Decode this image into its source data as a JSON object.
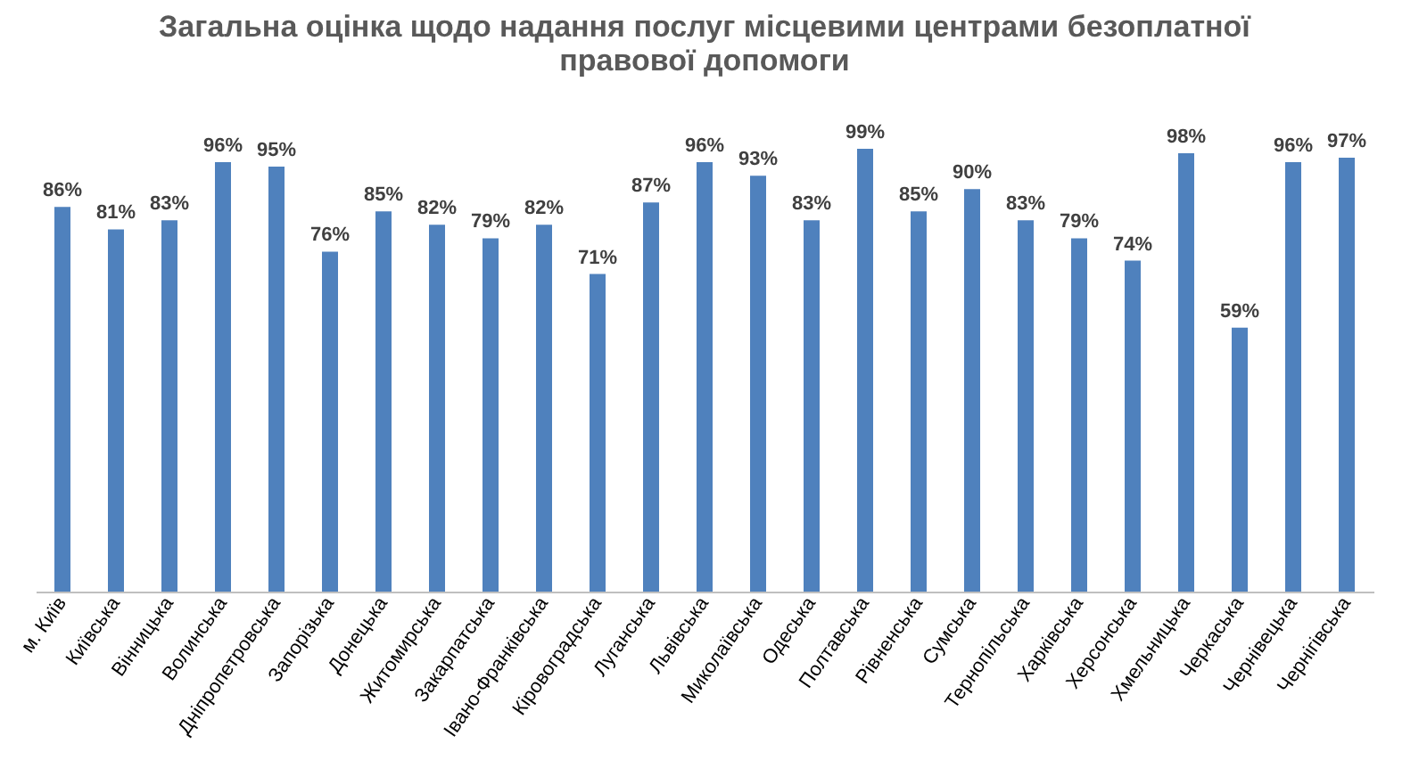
{
  "chart_data": {
    "type": "bar",
    "title": [
      "Загальна оцінка щодо надання послуг місцевими центрами безоплатної",
      "правової допомоги"
    ],
    "categories": [
      "м. Київ",
      "Київська",
      "Вінницька",
      "Волинська",
      "Дніпропетровська",
      "Запорізька",
      "Донецька",
      "Житомирська",
      "Закарпатська",
      "Івано-Франківська",
      "Кіровоградська",
      "Луганська",
      "Львівська",
      "Миколаївська",
      "Одеська",
      "Полтавська",
      "Рівненська",
      "Сумська",
      "Тернопільська",
      "Харківська",
      "Херсонська",
      "Хмельницька",
      "Черкаська",
      "Чернівецька",
      "Чернігівська"
    ],
    "values": [
      86,
      81,
      83,
      96,
      95,
      76,
      85,
      82,
      79,
      82,
      71,
      87,
      96,
      93,
      83,
      99,
      85,
      90,
      83,
      79,
      74,
      98,
      59,
      96,
      97
    ],
    "value_labels": [
      "86%",
      "81%",
      "83%",
      "96%",
      "95%",
      "76%",
      "85%",
      "82%",
      "79%",
      "82%",
      "71%",
      "87%",
      "96%",
      "93%",
      "83%",
      "99%",
      "85%",
      "90%",
      "83%",
      "79%",
      "74%",
      "98%",
      "59%",
      "96%",
      "97%"
    ],
    "color": "#4f81bd",
    "ylim": [
      0,
      100
    ],
    "tick_labels": "x"
  }
}
